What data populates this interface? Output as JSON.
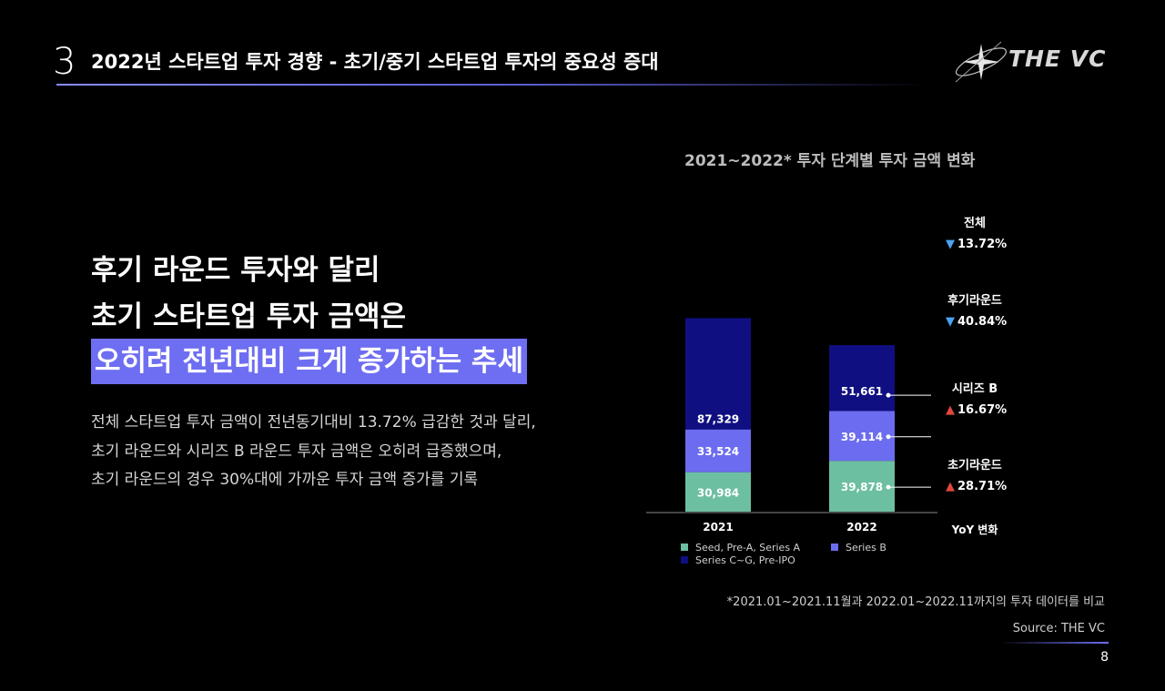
{
  "header": {
    "section_number": "3",
    "title": "2022년 스타트업 투자 경향 - 초기/중기 스타트업 투자의 중요성 증대",
    "logo_text": "THE VC"
  },
  "headline": {
    "line1": "후기 라운드 투자와 달리",
    "line2": "초기 스타트업 투자 금액은",
    "line3_highlight": "오히려 전년대비 크게 증가하는 추세"
  },
  "body": [
    "전체 스타트업 투자 금액이 전년동기대비 13.72% 급감한 것과 달리,",
    "초기 라운드와 시리즈 B 라운드 투자 금액은 오히려 급증했으며,",
    "초기 라운드의 경우 30%대에 가까운 투자 금액 증가를 기록"
  ],
  "chart_data": {
    "type": "bar",
    "stacked": true,
    "title": "2021~2022* 투자 단계별 투자 금액 변화",
    "categories": [
      "2021",
      "2022"
    ],
    "series": [
      {
        "name": "Seed, Pre-A, Series A",
        "values": [
          30984,
          39878
        ],
        "color": "#6dbfa2",
        "label_values": [
          "30,984",
          "39,878"
        ]
      },
      {
        "name": "Series B",
        "values": [
          33524,
          39114
        ],
        "color": "#6c6cf0",
        "label_values": [
          "33,524",
          "39,114"
        ]
      },
      {
        "name": "Series C~G, Pre-IPO",
        "values": [
          87329,
          51661
        ],
        "color": "#0f0f82",
        "label_values": [
          "87,329",
          "51,661"
        ]
      }
    ],
    "yoy_title": "YoY 변화",
    "yoy": [
      {
        "label": "전체",
        "direction": "down",
        "value": "13.72%"
      },
      {
        "label": "후기라운드",
        "direction": "down",
        "value": "40.84%"
      },
      {
        "label": "시리즈 B",
        "direction": "up",
        "value": "16.67%"
      },
      {
        "label": "초기라운드",
        "direction": "up",
        "value": "28.71%"
      }
    ],
    "up_color": "#e0473f",
    "down_color": "#4aa3f0",
    "legend_position": "bottom"
  },
  "footnote": "*2021.01~2021.11월과 2022.01~2022.11까지의 투자 데이터를 비교",
  "source": "Source: THE VC",
  "page_number": "8"
}
